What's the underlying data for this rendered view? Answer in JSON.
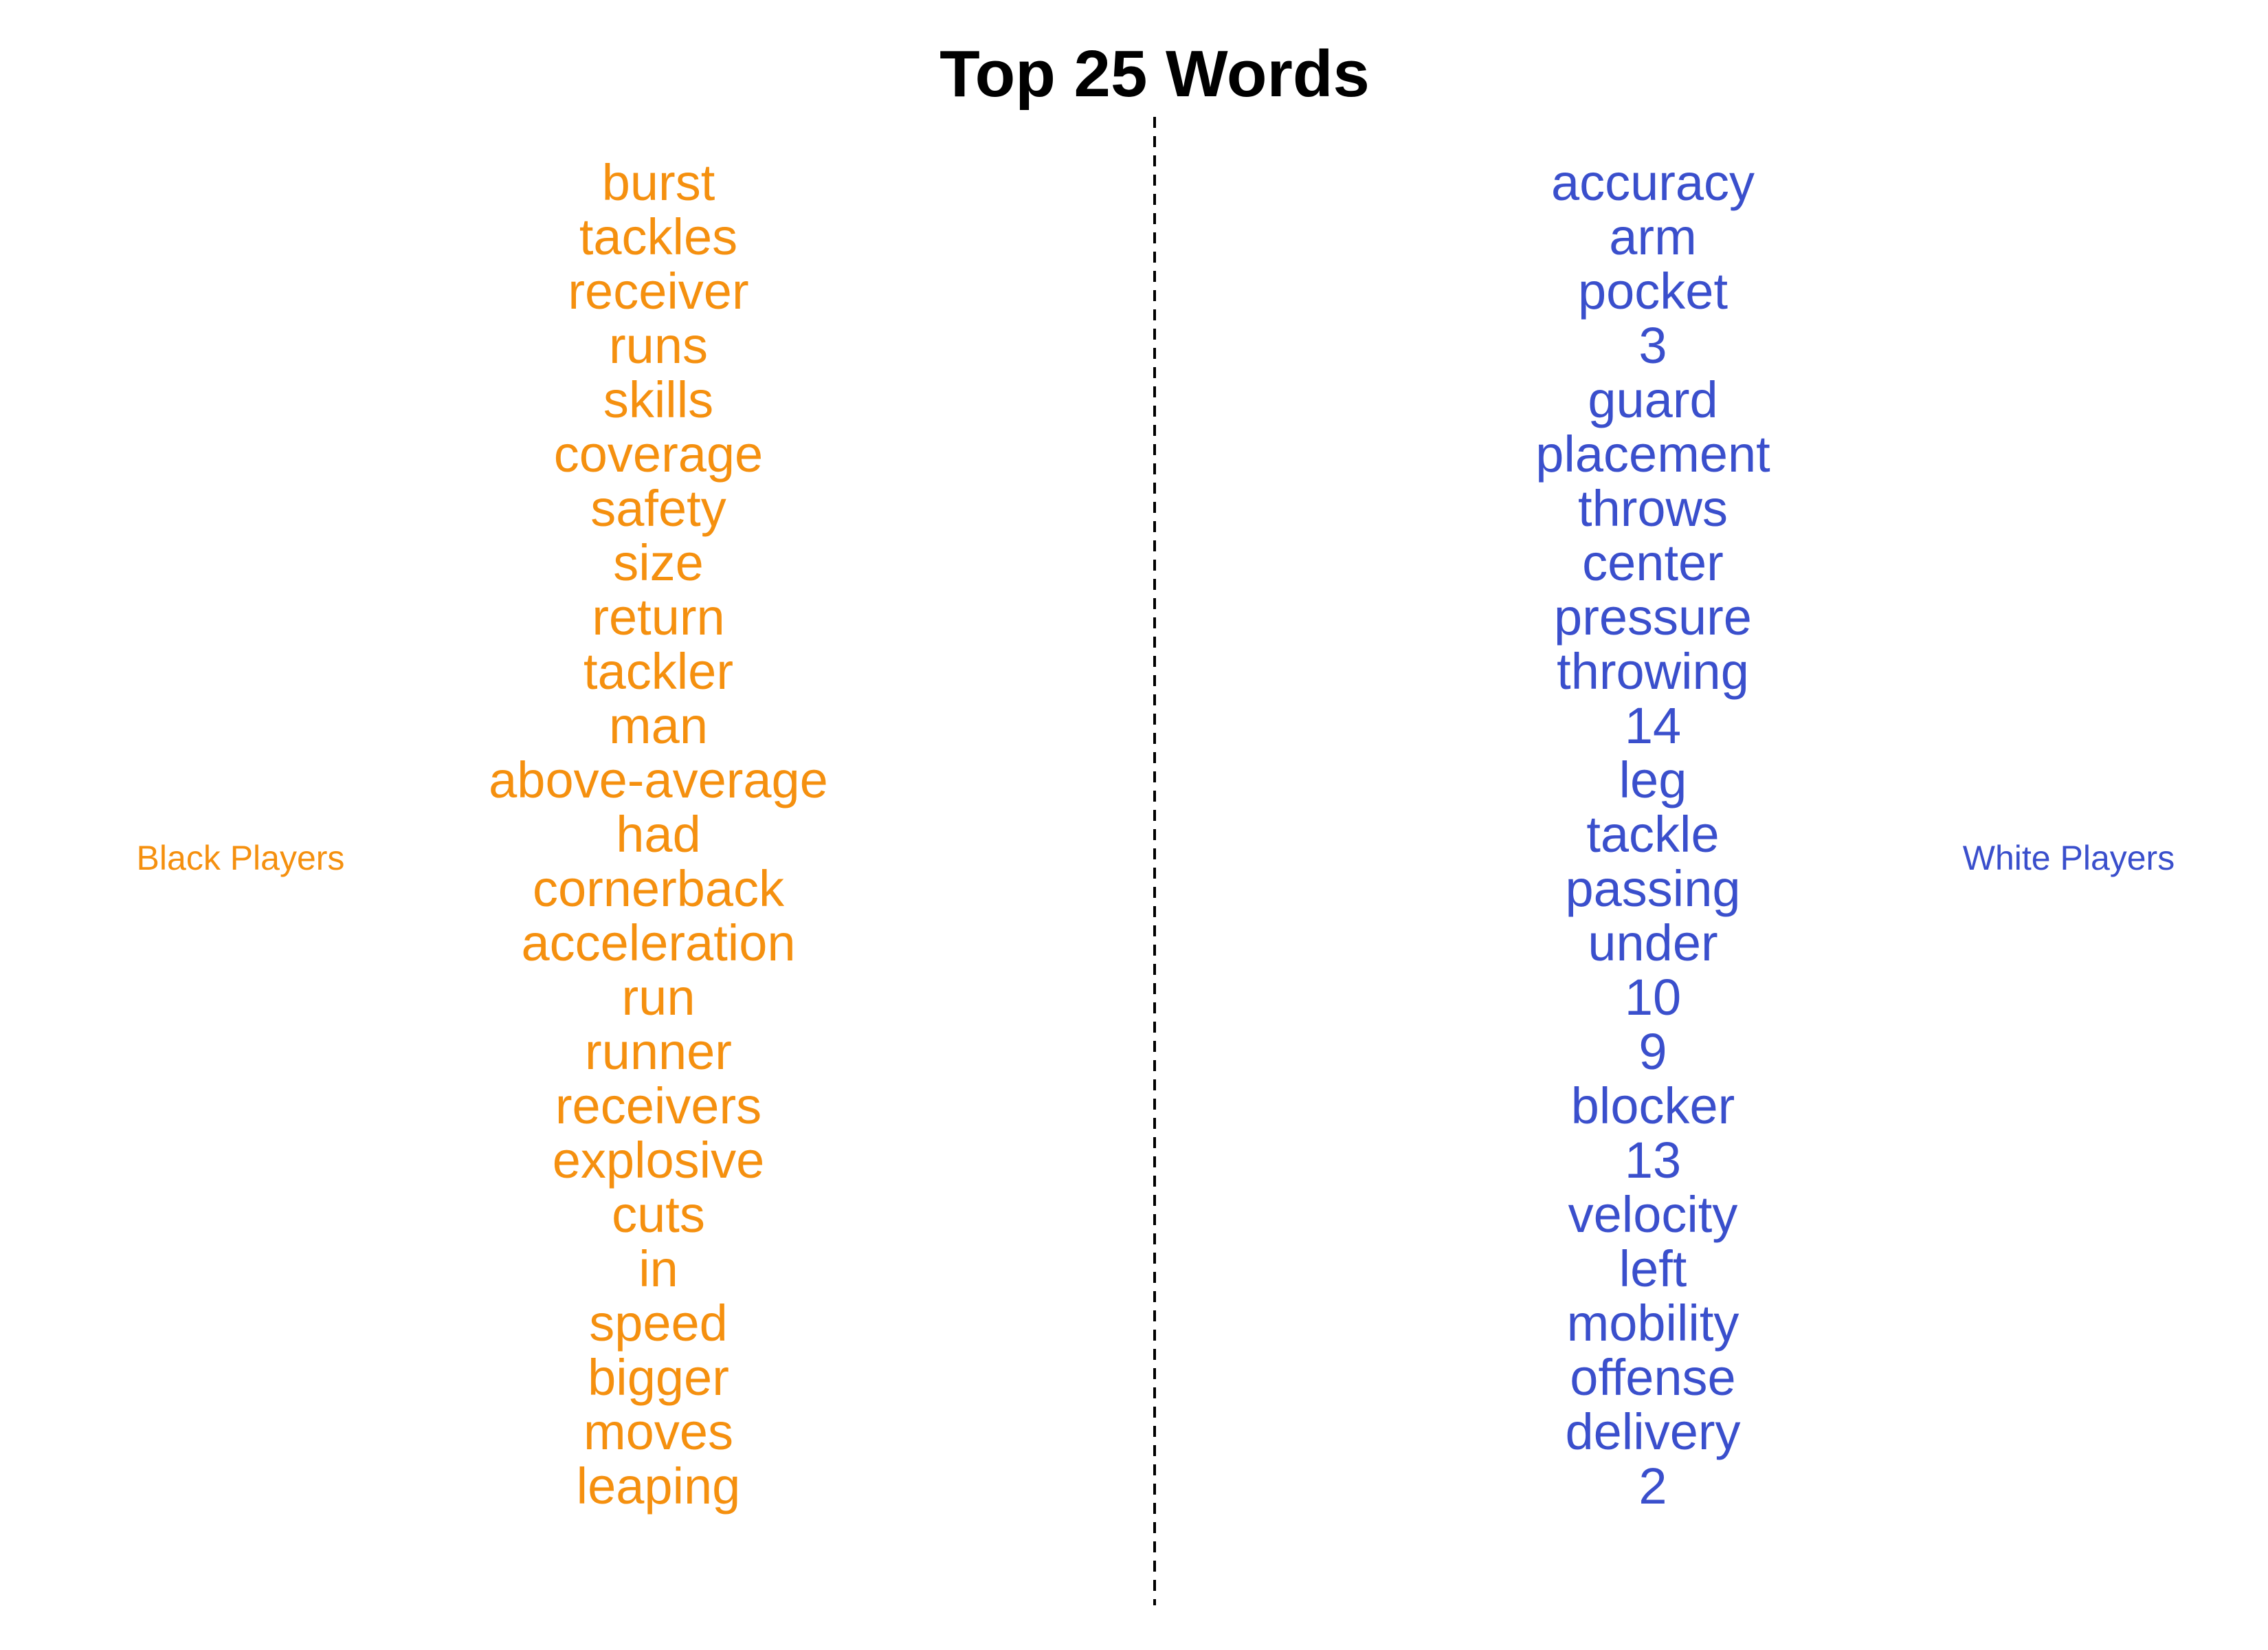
{
  "chart_data": {
    "type": "table",
    "title": "Top 25 Words",
    "columns": [
      {
        "label": "Black Players",
        "color": "#F5900F",
        "words": [
          "burst",
          "tackles",
          "receiver",
          "runs",
          "skills",
          "coverage",
          "safety",
          "size",
          "return",
          "tackler",
          "man",
          "above-average",
          "had",
          "cornerback",
          "acceleration",
          "run",
          "runner",
          "receivers",
          "explosive",
          "cuts",
          "in",
          "speed",
          "bigger",
          "moves",
          "leaping"
        ]
      },
      {
        "label": "White Players",
        "color": "#3A4FCC",
        "words": [
          "accuracy",
          "arm",
          "pocket",
          "3",
          "guard",
          "placement",
          "throws",
          "center",
          "pressure",
          "throwing",
          "14",
          "leg",
          "tackle",
          "passing",
          "under",
          "10",
          "9",
          "blocker",
          "13",
          "velocity",
          "left",
          "mobility",
          "offense",
          "delivery",
          "2"
        ]
      }
    ],
    "divider": "dashed",
    "title_color": "#000000"
  }
}
